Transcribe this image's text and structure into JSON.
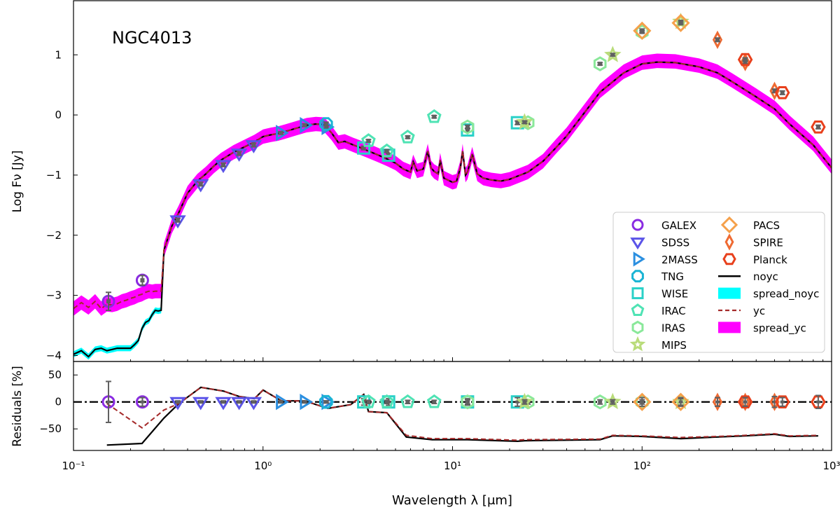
{
  "chart_data": {
    "type": "line",
    "title": "NGC4013",
    "xlabel": "Wavelength λ [μm]",
    "xscale": "log",
    "xlim": [
      0.1,
      1000
    ],
    "xticks": [
      {
        "value": 0.1,
        "label": "10⁻¹"
      },
      {
        "value": 1,
        "label": "10⁰"
      },
      {
        "value": 10,
        "label": "10¹"
      },
      {
        "value": 100,
        "label": "10²"
      },
      {
        "value": 1000,
        "label": "10³"
      }
    ],
    "top_panel": {
      "ylabel": "Log Fν [Jy]",
      "ylim": [
        -4.1,
        1.9
      ],
      "yticks": [
        {
          "value": 1,
          "label": "1"
        },
        {
          "value": 0,
          "label": "0"
        },
        {
          "value": -1,
          "label": "−1"
        },
        {
          "value": -2,
          "label": "−2"
        },
        {
          "value": -3,
          "label": "−3"
        },
        {
          "value": -4,
          "label": "−4"
        }
      ],
      "model_noyc": {
        "x": [
          0.1,
          0.11,
          0.12,
          0.13,
          0.14,
          0.15,
          0.16,
          0.17,
          0.18,
          0.19,
          0.2,
          0.21,
          0.22,
          0.23,
          0.24,
          0.25,
          0.26,
          0.27,
          0.28,
          0.29,
          0.3,
          0.33,
          0.36,
          0.4,
          0.45,
          0.5,
          0.55,
          0.6,
          0.7,
          0.8,
          0.9,
          1.0,
          1.1,
          1.2,
          1.3,
          1.5,
          1.7,
          1.9,
          2.1,
          2.3,
          2.5,
          2.7,
          3.0,
          3.3,
          3.6,
          4.0,
          4.5,
          5.0,
          5.5,
          6.0,
          6.2,
          6.5,
          7.0,
          7.4,
          7.7,
          8.0,
          8.4,
          8.6,
          9.0,
          10.0,
          10.5,
          11.0,
          11.3,
          11.7,
          12.0,
          12.7,
          13.5,
          14.5,
          16,
          18,
          20,
          25,
          30,
          35,
          40,
          50,
          60,
          80,
          100,
          120,
          150,
          200,
          250,
          300,
          400,
          500,
          600,
          800,
          1000
        ],
        "y": [
          -3.98,
          -3.92,
          -4.02,
          -3.9,
          -3.88,
          -3.92,
          -3.9,
          -3.88,
          -3.88,
          -3.88,
          -3.88,
          -3.82,
          -3.75,
          -3.55,
          -3.45,
          -3.42,
          -3.32,
          -3.25,
          -3.26,
          -3.25,
          -2.25,
          -1.85,
          -1.62,
          -1.3,
          -1.1,
          -0.98,
          -0.85,
          -0.75,
          -0.62,
          -0.53,
          -0.45,
          -0.36,
          -0.33,
          -0.31,
          -0.28,
          -0.22,
          -0.17,
          -0.15,
          -0.16,
          -0.3,
          -0.46,
          -0.44,
          -0.5,
          -0.55,
          -0.6,
          -0.66,
          -0.73,
          -0.8,
          -0.9,
          -0.95,
          -0.78,
          -0.93,
          -0.9,
          -0.6,
          -0.88,
          -0.94,
          -0.98,
          -0.75,
          -1.05,
          -1.12,
          -1.1,
          -0.88,
          -0.6,
          -1.0,
          -0.95,
          -0.65,
          -0.98,
          -1.05,
          -1.08,
          -1.1,
          -1.07,
          -0.95,
          -0.77,
          -0.55,
          -0.35,
          0.05,
          0.38,
          0.7,
          0.85,
          0.88,
          0.87,
          0.8,
          0.7,
          0.55,
          0.3,
          0.1,
          -0.15,
          -0.5,
          -0.88
        ]
      },
      "model_yc": {
        "x": [
          0.1,
          0.11,
          0.12,
          0.13,
          0.14,
          0.15,
          0.16,
          0.17,
          0.18,
          0.19,
          0.2,
          0.21,
          0.22,
          0.23,
          0.24,
          0.25,
          0.26,
          0.27,
          0.28,
          0.29,
          0.3
        ],
        "y": [
          -3.22,
          -3.12,
          -3.2,
          -3.1,
          -3.22,
          -3.15,
          -3.16,
          -3.14,
          -3.1,
          -3.08,
          -3.05,
          -3.03,
          -3.0,
          -2.98,
          -2.95,
          -2.93,
          -2.94,
          -2.93,
          -2.93,
          -2.93,
          -2.25
        ]
      },
      "spread_noyc": {
        "label": "spread_noyc",
        "color": "#00ffff",
        "halfwidth": 0.05
      },
      "spread_yc": {
        "label": "spread_yc",
        "color": "#ff00ff",
        "halfwidth": 0.12
      },
      "observations": [
        {
          "band": "GALEX",
          "x": [
            0.153,
            0.231
          ],
          "y": [
            -3.1,
            -2.75
          ],
          "err": [
            0.15,
            0.08
          ]
        },
        {
          "band": "SDSS",
          "x": [
            0.355,
            0.469,
            0.617,
            0.748,
            0.893
          ],
          "y": [
            -1.75,
            -1.15,
            -0.83,
            -0.64,
            -0.5
          ],
          "err": [
            0.03,
            0.03,
            0.03,
            0.03,
            0.03
          ]
        },
        {
          "band": "2MASS",
          "x": [
            1.24,
            1.66,
            2.16
          ],
          "y": [
            -0.3,
            -0.17,
            -0.2
          ],
          "err": [
            0.02,
            0.02,
            0.02
          ]
        },
        {
          "band": "TNG",
          "x": [
            2.15
          ],
          "y": [
            -0.15
          ],
          "err": [
            0.03
          ]
        },
        {
          "band": "WISE",
          "x": [
            3.4,
            4.6,
            12.0,
            22.0
          ],
          "y": [
            -0.55,
            -0.67,
            -0.25,
            -0.13
          ],
          "err": [
            0.03,
            0.03,
            0.03,
            0.03
          ]
        },
        {
          "band": "IRAC",
          "x": [
            3.6,
            4.5,
            5.8,
            8.0
          ],
          "y": [
            -0.43,
            -0.6,
            -0.37,
            -0.03
          ],
          "err": [
            0.02,
            0.02,
            0.02,
            0.02
          ]
        },
        {
          "band": "IRAS",
          "x": [
            12.0,
            25.0,
            60.0,
            100.0
          ],
          "y": [
            -0.2,
            -0.13,
            0.85,
            1.38
          ],
          "err": [
            0.03,
            0.03,
            0.02,
            0.02
          ]
        },
        {
          "band": "MIPS",
          "x": [
            24.0,
            70.0,
            160.0
          ],
          "y": [
            -0.12,
            1.0,
            1.55
          ],
          "err": [
            0.02,
            0.02,
            0.02
          ]
        },
        {
          "band": "PACS",
          "x": [
            100.0,
            160.0
          ],
          "y": [
            1.4,
            1.53
          ],
          "err": [
            0.03,
            0.03
          ]
        },
        {
          "band": "SPIRE",
          "x": [
            250.0,
            350.0,
            500.0
          ],
          "y": [
            1.25,
            0.88,
            0.4
          ],
          "err": [
            0.03,
            0.03,
            0.03
          ]
        },
        {
          "band": "Planck",
          "x": [
            350.0,
            550.0,
            850.0
          ],
          "y": [
            0.92,
            0.37,
            -0.2
          ],
          "err": [
            0.03,
            0.03,
            0.03
          ]
        }
      ]
    },
    "bottom_panel": {
      "ylabel": "Residuals [%]",
      "ylim": [
        -90,
        75
      ],
      "yticks": [
        {
          "value": 50,
          "label": "50"
        },
        {
          "value": 0,
          "label": "0"
        },
        {
          "value": -50,
          "label": "−50"
        }
      ],
      "residuals_noyc": {
        "x": [
          0.15,
          0.23,
          0.3,
          0.36,
          0.47,
          0.62,
          0.75,
          0.9,
          1.0,
          1.25,
          1.66,
          2.2,
          2.9,
          3.4,
          3.6,
          4.5,
          5.7,
          7.8,
          12,
          22,
          24,
          60,
          70,
          100,
          160,
          250,
          350,
          500,
          600,
          850
        ],
        "y": [
          -80,
          -77,
          -30,
          -3,
          27,
          20,
          10,
          6,
          22,
          2,
          2,
          -12,
          -5,
          14,
          -18,
          -20,
          -65,
          -70,
          -70,
          -73,
          -72,
          -70,
          -63,
          -64,
          -68,
          -65,
          -63,
          -60,
          -64,
          -63
        ]
      },
      "residuals_yc": {
        "x": [
          0.15,
          0.23,
          0.3,
          0.36,
          0.47,
          0.62,
          0.75,
          0.9,
          1.0,
          1.25,
          1.66,
          2.2,
          2.9,
          3.4,
          3.6,
          4.5,
          5.7,
          7.8,
          12,
          22,
          24,
          60,
          70,
          100,
          160,
          250,
          350,
          500,
          600,
          850
        ],
        "y": [
          -3,
          -48,
          -15,
          -3,
          27,
          20,
          10,
          6,
          22,
          2,
          2,
          -12,
          -5,
          14,
          -18,
          -20,
          -62,
          -68,
          -68,
          -71,
          -70,
          -69,
          -62,
          -63,
          -66,
          -64,
          -62,
          -59,
          -63,
          -62
        ]
      },
      "points": [
        {
          "band": "GALEX",
          "x": [
            0.153,
            0.231
          ],
          "y": [
            0,
            0
          ],
          "err": [
            38,
            8
          ]
        },
        {
          "band": "SDSS",
          "x": [
            0.355,
            0.469,
            0.617,
            0.748,
            0.893
          ],
          "y": [
            0,
            0,
            0,
            0,
            0
          ],
          "err": [
            2,
            2,
            2,
            2,
            2
          ]
        },
        {
          "band": "2MASS",
          "x": [
            1.24,
            1.66,
            2.16
          ],
          "y": [
            0,
            0,
            0
          ],
          "err": [
            2,
            2,
            2
          ]
        },
        {
          "band": "TNG",
          "x": [
            2.15
          ],
          "y": [
            0
          ],
          "err": [
            2
          ]
        },
        {
          "band": "WISE",
          "x": [
            3.4,
            4.6,
            12.0,
            22.0
          ],
          "y": [
            0,
            0,
            0,
            0
          ],
          "err": [
            6,
            6,
            6,
            8
          ]
        },
        {
          "band": "IRAC",
          "x": [
            3.6,
            4.5,
            5.8,
            8.0
          ],
          "y": [
            0,
            0,
            0,
            0
          ],
          "err": [
            3,
            3,
            3,
            3
          ]
        },
        {
          "band": "IRAS",
          "x": [
            12.0,
            25.0,
            60.0,
            100.0
          ],
          "y": [
            0,
            0,
            0,
            0
          ],
          "err": [
            4,
            4,
            4,
            4
          ]
        },
        {
          "band": "MIPS",
          "x": [
            24.0,
            70.0,
            160.0
          ],
          "y": [
            0,
            0,
            0
          ],
          "err": [
            4,
            4,
            6
          ]
        },
        {
          "band": "PACS",
          "x": [
            100.0,
            160.0
          ],
          "y": [
            0,
            0
          ],
          "err": [
            8,
            8
          ]
        },
        {
          "band": "SPIRE",
          "x": [
            250.0,
            350.0,
            500.0
          ],
          "y": [
            0,
            0,
            0
          ],
          "err": [
            8,
            8,
            10
          ]
        },
        {
          "band": "Planck",
          "x": [
            350.0,
            550.0,
            850.0
          ],
          "y": [
            0,
            0,
            0
          ],
          "err": [
            8,
            8,
            12
          ]
        }
      ]
    },
    "legend": {
      "placement": "lower-right",
      "entries": [
        {
          "label": "GALEX",
          "marker": "circle",
          "color": "#8a2be2"
        },
        {
          "label": "SDSS",
          "marker": "triangle-down",
          "color": "#5b54e8"
        },
        {
          "label": "2MASS",
          "marker": "triangle-right",
          "color": "#2b8fe0"
        },
        {
          "label": "TNG",
          "marker": "octagon",
          "color": "#1ab4d4"
        },
        {
          "label": "WISE",
          "marker": "square",
          "color": "#2ad1c8"
        },
        {
          "label": "IRAC",
          "marker": "pentagon",
          "color": "#4fe3b4"
        },
        {
          "label": "IRAS",
          "marker": "hexagon",
          "color": "#8ae89a"
        },
        {
          "label": "MIPS",
          "marker": "star",
          "color": "#b9dc7a"
        },
        {
          "label": "PACS",
          "marker": "diamond",
          "color": "#f5a04a"
        },
        {
          "label": "SPIRE",
          "marker": "thin-diamond",
          "color": "#ef6a32"
        },
        {
          "label": "Planck",
          "marker": "hexagon2",
          "color": "#e8401c"
        },
        {
          "label": "noyc",
          "marker": "line-solid",
          "color": "#000000"
        },
        {
          "label": "spread_noyc",
          "marker": "patch",
          "color": "#00ffff"
        },
        {
          "label": "yc",
          "marker": "line-dashed",
          "color": "#a52a2a"
        },
        {
          "label": "spread_yc",
          "marker": "patch",
          "color": "#ff00ff"
        }
      ]
    }
  }
}
